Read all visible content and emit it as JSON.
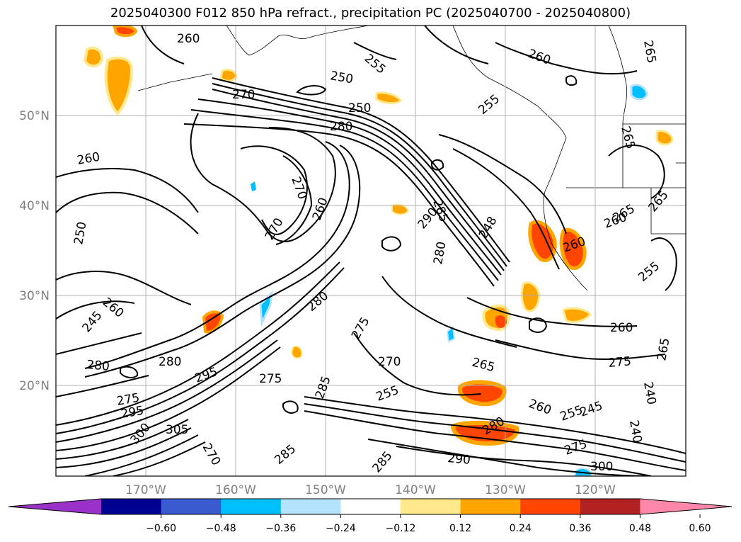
{
  "title": "2025040300 F012 850 hPa refract., precipitation PC (2025040700 - 2025040800)",
  "lat_labels": [
    "50°N",
    "40°N",
    "30°N",
    "20°N"
  ],
  "lon_labels": [
    "170°W",
    "160°W",
    "150°W",
    "140°W",
    "130°W",
    "120°W"
  ],
  "colorbar": {
    "colors": [
      "#9b32c8",
      "#000090",
      "#3a5bcf",
      "#00bfff",
      "#b3e3ff",
      "#ffffff",
      "#ffe98c",
      "#ffa500",
      "#ff4500",
      "#b22222",
      "#ff88aa"
    ],
    "tick_labels": [
      "−0.60",
      "−0.48",
      "−0.36",
      "−0.24",
      "−0.12",
      "0.12",
      "0.24",
      "0.36",
      "0.48",
      "0.60"
    ]
  },
  "contour_labels": [
    "260",
    "255",
    "260",
    "265",
    "250",
    "270",
    "250",
    "255",
    "280",
    "265",
    "260",
    "270",
    "260",
    "290",
    "285",
    "280",
    "248",
    "270",
    "260",
    "265",
    "260",
    "265",
    "255",
    "250",
    "260",
    "245",
    "260",
    "275",
    "280",
    "295",
    "280",
    "275",
    "285",
    "265",
    "270",
    "275",
    "260",
    "255",
    "245",
    "240",
    "240",
    "290",
    "280",
    "300",
    "285",
    "275",
    "285",
    "305",
    "270",
    "295",
    "300",
    "280",
    "275",
    "265",
    "255"
  ]
}
